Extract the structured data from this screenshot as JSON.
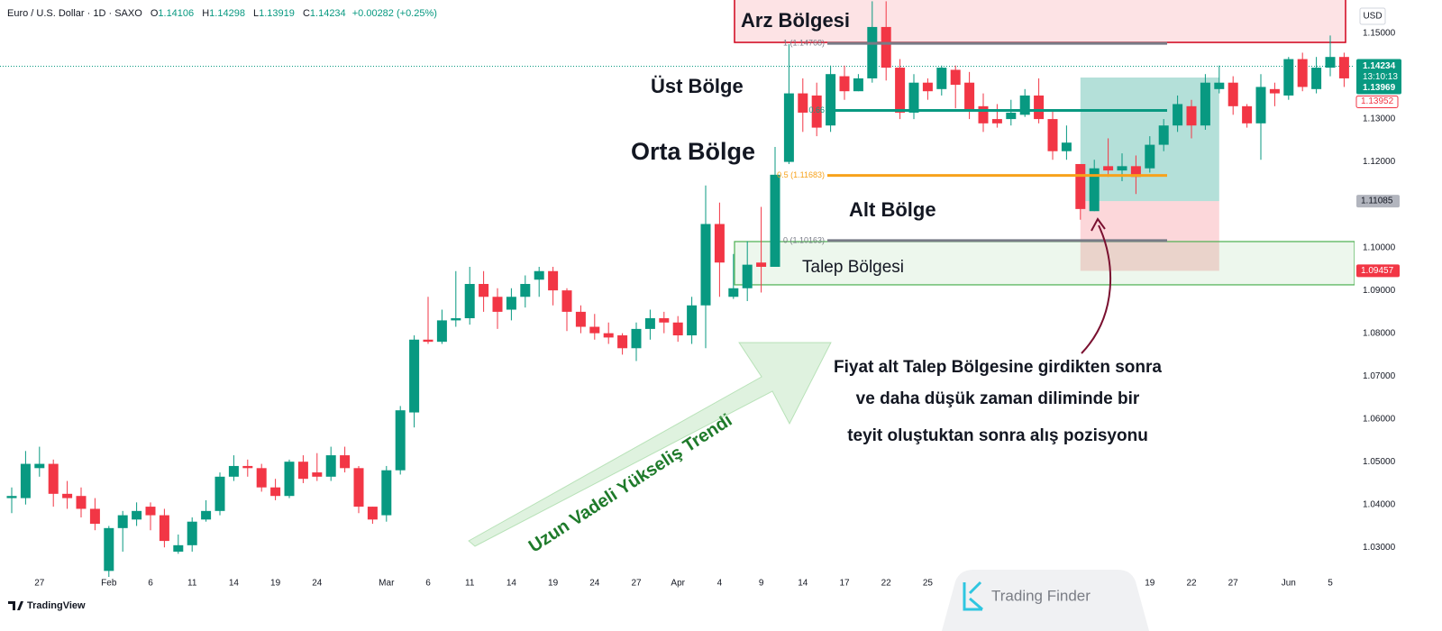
{
  "header": {
    "symbol": "Euro / U.S. Dollar · 1D · SAXO",
    "ohlc": [
      {
        "key": "O",
        "value": "1.14106"
      },
      {
        "key": "H",
        "value": "1.14298"
      },
      {
        "key": "L",
        "value": "1.13919"
      },
      {
        "key": "C",
        "value": "1.14234"
      }
    ],
    "change": "+0.00282 (+0.25%)"
  },
  "chart_data": {
    "type": "candlestick",
    "categories": [
      null,
      null,
      "27",
      null,
      null,
      null,
      null,
      "Feb",
      null,
      null,
      "6",
      null,
      null,
      "11",
      null,
      null,
      "14",
      null,
      null,
      "19",
      null,
      null,
      "24",
      null,
      null,
      null,
      null,
      "Mar",
      null,
      null,
      "6",
      null,
      null,
      "11",
      null,
      null,
      "14",
      null,
      null,
      "19",
      null,
      null,
      "24",
      null,
      null,
      "27",
      null,
      null,
      "Apr",
      null,
      null,
      "4",
      null,
      null,
      "9",
      null,
      null,
      "14",
      null,
      null,
      "17",
      null,
      null,
      "22",
      null,
      null,
      "25",
      null,
      null,
      null,
      null,
      null,
      null,
      null,
      null,
      null,
      null,
      null,
      null,
      null,
      null,
      null,
      "19",
      null,
      null,
      "22",
      null,
      null,
      "27",
      null,
      null,
      null,
      "Jun",
      null,
      null,
      "5",
      null
    ],
    "open": [
      1.0415,
      1.0415,
      1.0485,
      1.0495,
      1.0425,
      1.042,
      1.039,
      1.0245,
      1.0345,
      1.0365,
      1.0395,
      1.0375,
      1.029,
      1.0305,
      1.0365,
      1.0385,
      1.0465,
      1.049,
      1.0485,
      1.044,
      1.042,
      1.05,
      1.0475,
      1.0465,
      1.0515,
      1.0485,
      1.0395,
      1.0375,
      1.048,
      1.0615,
      1.0785,
      1.078,
      1.083,
      1.0835,
      1.0915,
      1.0885,
      1.0855,
      1.0885,
      1.0925,
      1.0945,
      1.09,
      1.085,
      1.0815,
      1.08,
      1.0795,
      1.0765,
      1.081,
      1.0835,
      1.0825,
      1.0795,
      1.0865,
      1.1055,
      1.0885,
      1.0905,
      1.0965,
      1.0955,
      1.12,
      1.136,
      1.1355,
      1.1285,
      1.14,
      1.1365,
      1.1395,
      1.1515,
      1.142,
      1.1315,
      1.1385,
      1.137,
      1.1415,
      1.1385,
      1.133,
      1.13,
      1.13,
      1.131,
      1.1355,
      1.13,
      1.1225,
      1.1195,
      1.1085,
      1.119,
      1.118,
      1.119,
      1.1185,
      1.124,
      1.1285,
      1.133,
      1.1285,
      1.137,
      1.1385,
      1.133,
      1.129,
      1.137,
      1.1355,
      1.144,
      1.137,
      1.142,
      1.1445
    ],
    "high": [
      1.044,
      1.0525,
      1.0535,
      1.0505,
      1.0455,
      1.044,
      1.0415,
      1.035,
      1.0385,
      1.0405,
      1.0405,
      1.039,
      1.033,
      1.037,
      1.041,
      1.0475,
      1.0515,
      1.0505,
      1.0495,
      1.046,
      1.0505,
      1.0515,
      1.052,
      1.0535,
      1.0535,
      1.049,
      1.0395,
      1.049,
      1.063,
      1.0795,
      1.0885,
      1.0855,
      1.0945,
      1.0955,
      1.0945,
      1.0905,
      1.0905,
      1.0935,
      1.0955,
      1.0955,
      1.0905,
      1.0865,
      1.0845,
      1.0825,
      1.08,
      1.0825,
      1.0855,
      1.085,
      1.084,
      1.0885,
      1.1145,
      1.1105,
      1.0985,
      1.1015,
      1.1095,
      1.1235,
      1.1475,
      1.1395,
      1.1385,
      1.1425,
      1.1425,
      1.1405,
      1.1575,
      1.1575,
      1.144,
      1.1405,
      1.1395,
      1.1425,
      1.1425,
      1.141,
      1.136,
      1.1335,
      1.1345,
      1.137,
      1.1395,
      1.132,
      1.1285,
      1.1195,
      1.1205,
      1.1255,
      1.122,
      1.1215,
      1.126,
      1.13,
      1.1355,
      1.1345,
      1.1405,
      1.1425,
      1.14,
      1.1335,
      1.1405,
      1.1385,
      1.1445,
      1.1455,
      1.1445,
      1.1495,
      1.1455
    ],
    "low": [
      1.038,
      1.04,
      1.0465,
      1.0395,
      1.039,
      1.037,
      1.034,
      1.0215,
      1.029,
      1.035,
      1.034,
      1.03,
      1.0285,
      1.029,
      1.036,
      1.0375,
      1.0455,
      1.0465,
      1.043,
      1.041,
      1.0415,
      1.045,
      1.0455,
      1.0455,
      1.0475,
      1.038,
      1.0355,
      1.036,
      1.047,
      1.058,
      1.0775,
      1.0775,
      1.0815,
      1.082,
      1.085,
      1.081,
      1.083,
      1.086,
      1.0885,
      1.0865,
      1.0805,
      1.08,
      1.0785,
      1.0775,
      1.075,
      1.0735,
      1.0785,
      1.08,
      1.078,
      1.0775,
      1.0765,
      1.0885,
      1.088,
      1.0875,
      1.0895,
      1.0955,
      1.1195,
      1.127,
      1.126,
      1.127,
      1.1345,
      1.1365,
      1.1385,
      1.139,
      1.13,
      1.13,
      1.1345,
      1.1355,
      1.1325,
      1.13,
      1.127,
      1.128,
      1.1285,
      1.1305,
      1.129,
      1.1205,
      1.1205,
      1.1065,
      1.1085,
      1.1165,
      1.1155,
      1.1125,
      1.1175,
      1.1225,
      1.127,
      1.1255,
      1.1275,
      1.136,
      1.131,
      1.128,
      1.1205,
      1.133,
      1.1345,
      1.1365,
      1.136,
      1.14,
      1.1375
    ],
    "close": [
      1.042,
      1.0495,
      1.0495,
      1.0425,
      1.0415,
      1.039,
      1.0355,
      1.0345,
      1.0375,
      1.0385,
      1.0375,
      1.0315,
      1.0305,
      1.036,
      1.0385,
      1.0465,
      1.049,
      1.0485,
      1.044,
      1.042,
      1.05,
      1.046,
      1.0465,
      1.0515,
      1.0485,
      1.0395,
      1.0365,
      1.048,
      1.062,
      1.0785,
      1.078,
      1.083,
      1.0835,
      1.0915,
      1.0885,
      1.085,
      1.0885,
      1.0915,
      1.0945,
      1.09,
      1.085,
      1.0815,
      1.08,
      1.079,
      1.0765,
      1.081,
      1.0835,
      1.0825,
      1.0795,
      1.0865,
      1.1055,
      1.0965,
      1.0905,
      1.096,
      1.0955,
      1.117,
      1.136,
      1.1315,
      1.128,
      1.1405,
      1.1365,
      1.1395,
      1.1515,
      1.142,
      1.1315,
      1.1385,
      1.1365,
      1.142,
      1.138,
      1.132,
      1.129,
      1.129,
      1.1315,
      1.1355,
      1.13,
      1.1225,
      1.1245,
      1.109,
      1.1185,
      1.118,
      1.119,
      1.1165,
      1.124,
      1.1285,
      1.1335,
      1.1285,
      1.1385,
      1.1385,
      1.133,
      1.129,
      1.1375,
      1.136,
      1.144,
      1.1375,
      1.142,
      1.1445,
      1.1395
    ],
    "up_color": "#089981",
    "down_color": "#f23645",
    "ylim": [
      1.0231,
      1.1578
    ],
    "yticks": [
      {
        "value": 1.03,
        "label": "1.03000"
      },
      {
        "value": 1.04,
        "label": "1.04000"
      },
      {
        "value": 1.05,
        "label": "1.05000"
      },
      {
        "value": 1.06,
        "label": "1.06000"
      },
      {
        "value": 1.07,
        "label": "1.07000"
      },
      {
        "value": 1.08,
        "label": "1.08000"
      },
      {
        "value": 1.09,
        "label": "1.09000"
      },
      {
        "value": 1.1,
        "label": "1.10000"
      },
      {
        "value": 1.11,
        "label": "1.11000"
      },
      {
        "value": 1.12,
        "label": "1.12000"
      },
      {
        "value": 1.13,
        "label": "1.13000"
      },
      {
        "value": 1.14,
        "label": "1.14000"
      },
      {
        "value": 1.15,
        "label": "1.15000"
      }
    ],
    "grid": false,
    "currency": "USD",
    "last_price": {
      "value": 1.14234,
      "label": "1.14234",
      "countdown": "13:10:13"
    },
    "price_tags": [
      {
        "value": 1.13969,
        "label": "1.13969"
      },
      {
        "value": 1.13952,
        "label": "1.13952"
      }
    ],
    "supply_zone": {
      "label": "Arz Bölgesi",
      "top": 1.1585,
      "bottom": 1.1479
    },
    "demand_zone": {
      "label": "Talep Bölgesi",
      "top": 1.1014,
      "bottom": 1.0913
    },
    "fib_levels": [
      {
        "label": "1 (1.14768)",
        "value": 1.14768,
        "color": "#787b86"
      },
      {
        "label": "0.66",
        "value": 1.13202,
        "color": "#089981"
      },
      {
        "label": "0.5 (1.11683)",
        "value": 1.11683,
        "color": "#f7a21b"
      },
      {
        "label": "0 (1.10163)",
        "value": 1.10163,
        "color": "#787b86"
      }
    ],
    "position": {
      "target": 1.1397,
      "entry": {
        "value": 1.11085,
        "label": "1.11085"
      },
      "stop": {
        "value": 1.09457,
        "label": "1.09457"
      }
    },
    "zone_names": {
      "upper": "Üst Bölge",
      "middle": "Orta Bölge",
      "lower": "Alt Bölge"
    },
    "note": [
      "Fiyat alt Talep Bölgesine girdikten sonra",
      "ve daha düşük zaman diliminde bir",
      "teyit oluştuktan sonra alış pozisyonu"
    ],
    "trend_label": "Uzun Vadeli Yükseliş Trendi"
  },
  "footer": {
    "platform": "TradingView",
    "watermark": "Trading Finder"
  }
}
